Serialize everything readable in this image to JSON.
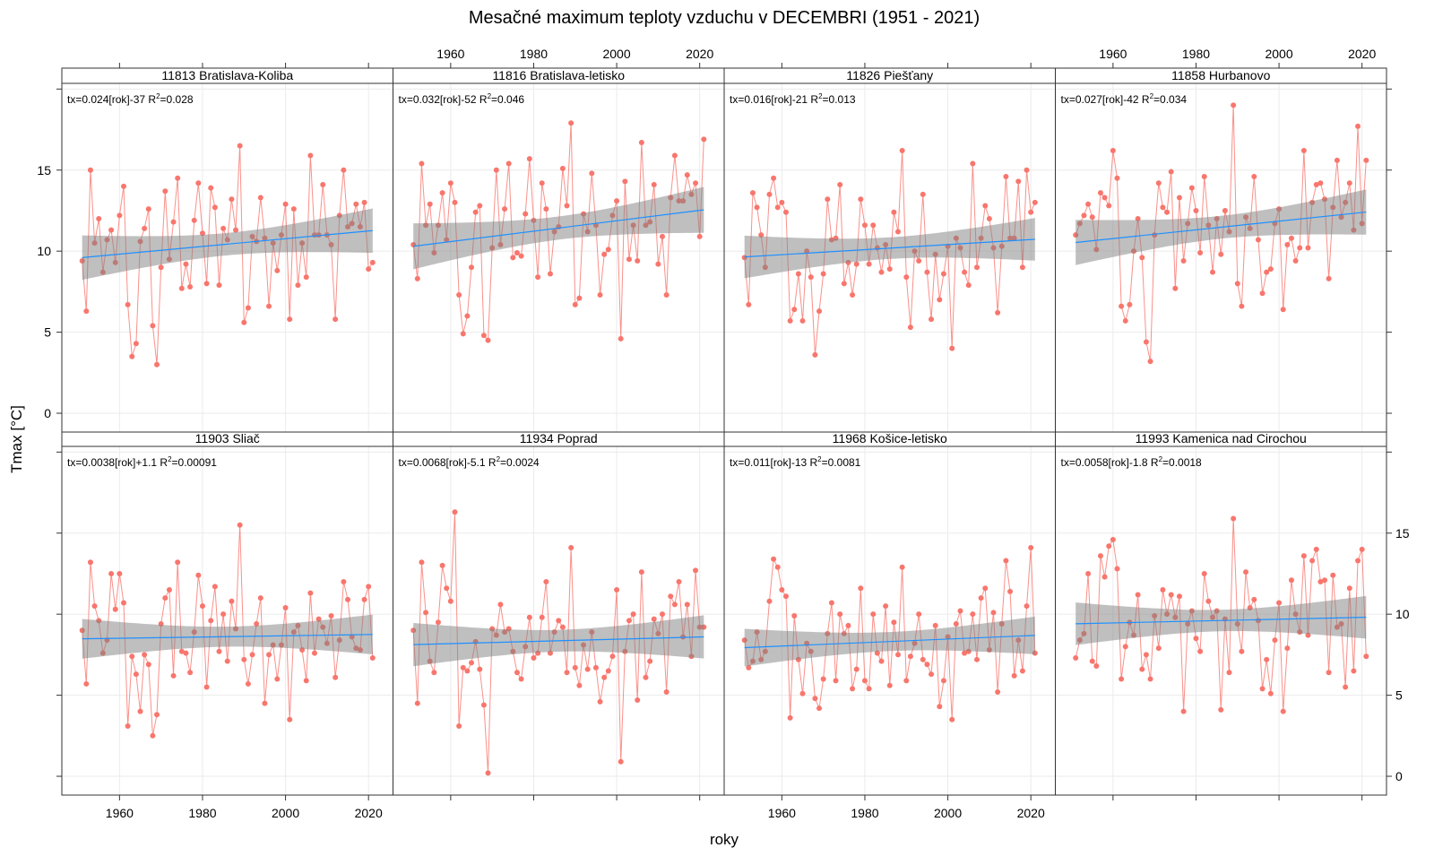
{
  "title": "Mesačné maximum teploty vzduchu v DECEMBRI (1951 - 2021)",
  "xlabel": "roky",
  "ylabel": "Tmax [°C]",
  "r2_label": "R",
  "r2_exp": "2",
  "colors": {
    "points": "#F8766D",
    "trend": "#1E90FF",
    "band": "#808080",
    "grid": "#EBEBEB"
  },
  "chart_data": [
    {
      "type": "line",
      "title": "11813 Bratislava-Koliba",
      "equation": "tx=0.024[rok]-37",
      "r2": "0.028",
      "y": [
        9.4,
        6.3,
        15.0,
        10.5,
        12.0,
        8.7,
        10.7,
        11.3,
        9.3,
        12.2,
        14.0,
        6.7,
        3.5,
        4.3,
        10.6,
        11.4,
        12.6,
        5.4,
        3.0,
        9.0,
        13.7,
        9.5,
        11.8,
        14.5,
        7.7,
        9.2,
        7.8,
        11.9,
        14.2,
        11.1,
        8.0,
        13.9,
        12.7,
        7.9,
        11.4,
        10.7,
        13.2,
        11.3,
        16.5,
        5.6,
        6.5,
        10.9,
        10.6,
        13.3,
        10.8,
        6.6,
        10.5,
        8.8,
        11.0,
        12.9,
        5.8,
        12.6,
        7.9,
        10.5,
        8.4,
        15.9,
        11.0,
        11.0,
        14.1,
        11.0,
        10.4,
        5.8,
        12.2,
        15.0,
        11.5,
        11.7,
        12.9,
        11.5,
        13.0,
        8.9,
        9.3
      ]
    },
    {
      "type": "line",
      "title": "11816 Bratislava-letisko",
      "equation": "tx=0.032[rok]-52",
      "r2": "0.046",
      "y": [
        10.4,
        8.3,
        15.4,
        11.6,
        12.9,
        9.9,
        11.6,
        13.6,
        10.7,
        14.2,
        13.0,
        7.3,
        4.9,
        6.0,
        9.0,
        12.4,
        12.8,
        4.8,
        4.5,
        10.2,
        15.0,
        10.4,
        12.6,
        15.4,
        9.6,
        9.9,
        9.7,
        12.3,
        15.7,
        11.9,
        8.4,
        14.2,
        12.6,
        8.6,
        11.2,
        11.5,
        15.1,
        12.8,
        17.9,
        6.7,
        7.1,
        12.3,
        11.2,
        14.8,
        11.6,
        7.3,
        9.8,
        10.1,
        12.2,
        13.1,
        4.6,
        14.3,
        9.5,
        11.6,
        9.4,
        16.7,
        11.6,
        11.8,
        14.1,
        9.2,
        10.9,
        7.3,
        13.3,
        15.9,
        13.1,
        13.1,
        14.7,
        13.5,
        14.2,
        10.9,
        16.9
      ]
    },
    {
      "type": "line",
      "title": "11826 Piešťany",
      "equation": "tx=0.016[rok]-21",
      "r2": "0.013",
      "y": [
        9.6,
        6.7,
        13.6,
        12.7,
        11.0,
        9.0,
        13.5,
        14.5,
        12.7,
        13.0,
        12.4,
        5.7,
        6.4,
        8.6,
        5.7,
        10.0,
        8.4,
        3.6,
        6.3,
        8.6,
        13.2,
        10.7,
        10.8,
        14.1,
        8.0,
        9.3,
        7.3,
        9.2,
        13.2,
        11.6,
        9.2,
        11.6,
        10.2,
        8.7,
        10.4,
        8.9,
        12.4,
        11.2,
        16.2,
        8.4,
        5.3,
        10.0,
        9.4,
        13.5,
        8.7,
        5.8,
        9.8,
        7.0,
        8.6,
        10.3,
        4.0,
        10.8,
        10.2,
        8.7,
        7.9,
        15.4,
        9.0,
        10.8,
        12.8,
        12.0,
        10.2,
        6.2,
        10.3,
        14.6,
        10.8,
        10.8,
        14.3,
        9.0,
        15.0,
        12.4,
        13.0
      ]
    },
    {
      "type": "line",
      "title": "11858 Hurbanovo",
      "equation": "tx=0.027[rok]-42",
      "r2": "0.034",
      "y": [
        11.0,
        11.7,
        12.2,
        12.9,
        12.1,
        10.1,
        13.6,
        13.3,
        12.8,
        16.2,
        14.5,
        6.6,
        5.7,
        6.7,
        10.0,
        12.0,
        9.6,
        4.4,
        3.2,
        11.0,
        14.2,
        12.7,
        12.4,
        14.9,
        7.7,
        13.3,
        9.4,
        11.7,
        13.9,
        12.5,
        9.9,
        14.6,
        11.6,
        8.7,
        12.0,
        9.8,
        12.5,
        11.2,
        19.0,
        8.0,
        6.6,
        12.1,
        11.4,
        14.6,
        10.7,
        7.4,
        8.7,
        8.9,
        11.7,
        12.6,
        6.4,
        10.4,
        10.8,
        9.4,
        10.2,
        16.2,
        10.2,
        13.0,
        14.1,
        14.2,
        13.2,
        8.3,
        12.7,
        15.6,
        12.1,
        13.0,
        14.2,
        11.3,
        17.7,
        11.7,
        15.6
      ]
    },
    {
      "type": "line",
      "title": "11903 Sliač",
      "equation": "tx=0.0038[rok]+1.1",
      "r2": "0.00091",
      "y": [
        9.0,
        5.7,
        13.2,
        10.5,
        9.6,
        7.6,
        8.4,
        12.5,
        10.3,
        12.5,
        10.7,
        3.1,
        7.4,
        6.3,
        4.0,
        7.5,
        6.9,
        2.5,
        3.8,
        9.4,
        11.0,
        11.5,
        6.2,
        13.2,
        7.7,
        7.6,
        6.4,
        8.9,
        12.4,
        10.5,
        5.5,
        9.6,
        11.7,
        7.7,
        10.0,
        7.1,
        10.8,
        9.1,
        15.5,
        7.2,
        5.7,
        7.5,
        9.4,
        11.0,
        4.5,
        7.5,
        8.1,
        6.0,
        8.1,
        10.4,
        3.5,
        8.9,
        9.3,
        7.8,
        5.9,
        11.3,
        7.6,
        9.7,
        9.2,
        8.2,
        9.9,
        6.1,
        8.4,
        12.0,
        10.9,
        8.6,
        7.9,
        7.8,
        10.9,
        11.7,
        7.3
      ]
    },
    {
      "type": "line",
      "title": "11934 Poprad",
      "equation": "tx=0.0068[rok]-5.1",
      "r2": "0.0024",
      "y": [
        9.0,
        4.5,
        13.2,
        10.1,
        7.1,
        6.4,
        9.5,
        13.0,
        11.6,
        10.8,
        16.3,
        3.1,
        6.7,
        6.5,
        7.0,
        8.3,
        6.6,
        4.4,
        0.2,
        9.1,
        8.7,
        10.6,
        8.9,
        9.1,
        7.7,
        6.4,
        6.0,
        8.0,
        9.8,
        7.3,
        7.6,
        9.8,
        12.0,
        7.6,
        8.9,
        9.6,
        9.2,
        6.4,
        14.1,
        6.7,
        5.6,
        8.1,
        6.6,
        8.9,
        6.7,
        4.6,
        6.1,
        6.5,
        7.4,
        11.5,
        0.9,
        7.7,
        9.6,
        10.0,
        4.7,
        12.6,
        6.1,
        7.1,
        9.7,
        8.8,
        10.0,
        5.2,
        11.1,
        10.6,
        12.0,
        8.6,
        10.6,
        7.4,
        12.7,
        9.2,
        9.2
      ]
    },
    {
      "type": "line",
      "title": "11968 Košice-letisko",
      "equation": "tx=0.011[rok]-13",
      "r2": "0.0081",
      "y": [
        8.4,
        6.7,
        7.1,
        8.9,
        7.2,
        7.7,
        10.8,
        13.4,
        12.9,
        11.5,
        11.1,
        3.6,
        9.9,
        7.2,
        5.1,
        8.2,
        7.7,
        4.8,
        4.2,
        6.0,
        8.8,
        10.7,
        5.9,
        10.0,
        8.8,
        9.3,
        5.4,
        6.6,
        11.6,
        5.9,
        5.4,
        10.0,
        7.6,
        7.1,
        10.5,
        5.6,
        9.5,
        7.5,
        12.9,
        5.9,
        7.4,
        8.2,
        10.0,
        7.2,
        6.9,
        6.3,
        9.3,
        4.3,
        5.9,
        8.6,
        3.5,
        9.4,
        10.2,
        7.6,
        7.7,
        10.0,
        7.2,
        11.0,
        11.6,
        7.8,
        10.1,
        5.2,
        9.4,
        13.3,
        11.4,
        6.2,
        8.4,
        6.5,
        10.5,
        14.1,
        7.6
      ]
    },
    {
      "type": "line",
      "title": "11993 Kamenica nad Cirochou",
      "equation": "tx=0.0058[rok]-1.8",
      "r2": "0.0018",
      "y": [
        7.3,
        8.4,
        8.8,
        12.5,
        7.1,
        6.8,
        13.6,
        12.3,
        14.2,
        14.6,
        12.8,
        6.0,
        8.0,
        9.5,
        8.7,
        11.2,
        6.6,
        7.5,
        6.0,
        9.9,
        7.9,
        11.5,
        10.0,
        11.2,
        9.8,
        11.1,
        4.0,
        9.4,
        10.2,
        8.5,
        7.7,
        12.5,
        10.8,
        9.8,
        10.2,
        4.1,
        9.7,
        6.4,
        15.9,
        9.4,
        7.7,
        12.6,
        10.4,
        10.9,
        9.6,
        5.4,
        7.2,
        5.1,
        8.4,
        10.7,
        4.0,
        7.9,
        12.1,
        10.0,
        8.9,
        13.6,
        8.7,
        13.3,
        14.0,
        12.0,
        12.1,
        6.4,
        12.4,
        9.2,
        9.4,
        5.5,
        11.6,
        6.5,
        13.3,
        14.0,
        7.4
      ]
    }
  ],
  "x_start": 1951,
  "x_end": 2021,
  "xlim": [
    1946.1,
    2025.9
  ],
  "ylim": [
    -1.16,
    20.35
  ],
  "x_ticks": [
    1960,
    1980,
    2000,
    2020
  ],
  "y_ticks": [
    0,
    5,
    10,
    15
  ],
  "y_tick_marks": [
    0,
    5,
    10,
    15,
    20
  ],
  "grid": true,
  "confidence_band": true
}
